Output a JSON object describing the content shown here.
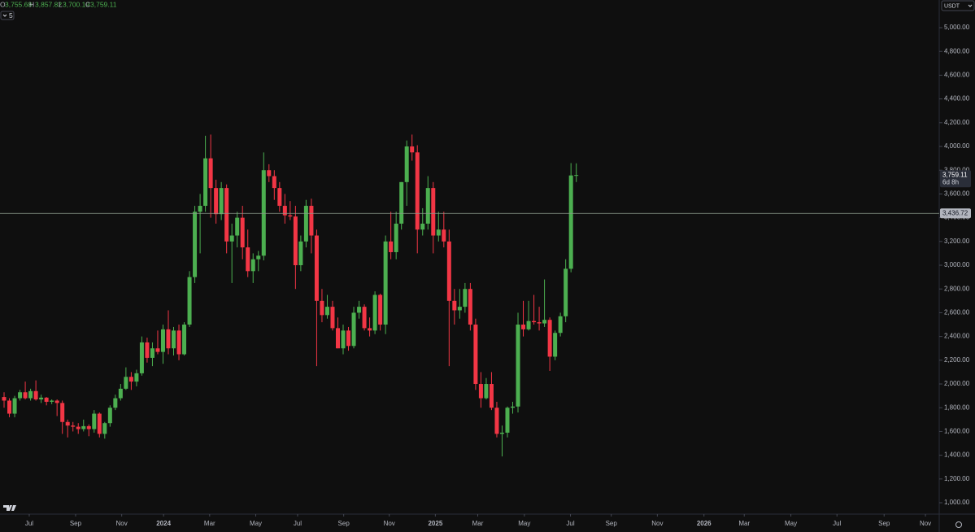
{
  "chart_data": {
    "type": "candlestick",
    "ohlc_legend": [
      {
        "key": "O",
        "value": 3755.68,
        "label": "3,755.68"
      },
      {
        "key": "H",
        "value": 3857.82,
        "label": "3,857.82"
      },
      {
        "key": "L",
        "value": 3700.19,
        "label": "3,700.19"
      },
      {
        "key": "C",
        "value": 3759.11,
        "label": "3,759.11"
      }
    ],
    "indicators_toggle": "5",
    "currency": "USDT",
    "up_color": "#4caf50",
    "down_color": "#f23645",
    "open": [
      1890,
      1860,
      1750,
      1880,
      1930,
      1880,
      1940,
      1870,
      1885,
      1850,
      1860,
      1840,
      1680,
      1650,
      1640,
      1620,
      1645,
      1620,
      1750,
      1580,
      1670,
      1800,
      1880,
      1960,
      2060,
      2020,
      2090,
      2350,
      2220,
      2300,
      2270,
      2460,
      2300,
      2450,
      2250,
      2500,
      2900,
      3450,
      3500,
      3900,
      3650,
      3430,
      3650,
      3200,
      3250,
      3400,
      3150,
      2950,
      3050,
      3080,
      3800,
      3750,
      3650,
      3500,
      3420,
      3410,
      3000,
      3200,
      3500,
      3250,
      2700,
      2580,
      2650,
      2470,
      2300,
      2450,
      2320,
      2600,
      2650,
      2470,
      2450,
      2750,
      2500,
      3200,
      3110,
      3350,
      3700,
      4000,
      3950,
      3300,
      3350,
      3650,
      3250,
      3300,
      3200,
      2700,
      2620,
      2650,
      2800,
      2500,
      2000,
      1880,
      2000,
      1800,
      1580,
      1590,
      1800,
      1810,
      2500,
      2460,
      2530,
      2520,
      2510,
      2540,
      2230,
      2430,
      2570,
      2970,
      3755.68
    ],
    "high": [
      1930,
      1880,
      1900,
      1950,
      2020,
      1960,
      2030,
      1910,
      1890,
      1870,
      1870,
      1860,
      1700,
      1680,
      1670,
      1700,
      1660,
      1780,
      1760,
      1680,
      1820,
      1910,
      2000,
      2140,
      2100,
      2120,
      2400,
      2390,
      2350,
      2450,
      2500,
      2620,
      2480,
      2500,
      2520,
      2950,
      3500,
      3600,
      4090,
      4100,
      3720,
      3700,
      3680,
      3350,
      3450,
      3500,
      3300,
      3100,
      3120,
      3950,
      3850,
      3800,
      3700,
      3600,
      3540,
      3500,
      3250,
      3550,
      3560,
      3300,
      2800,
      2750,
      2700,
      2560,
      2500,
      2480,
      2650,
      2700,
      2670,
      2560,
      2780,
      2760,
      3250,
      3450,
      3450,
      3700,
      4050,
      4100,
      4010,
      3480,
      3750,
      3700,
      3450,
      3450,
      3300,
      2800,
      2800,
      2850,
      2850,
      2550,
      2100,
      2050,
      2100,
      1850,
      1650,
      1810,
      1850,
      2600,
      2700,
      2700,
      2750,
      2650,
      2880,
      2560,
      2450,
      2600,
      3050,
      3860,
      3857.82
    ],
    "low": [
      1800,
      1720,
      1720,
      1860,
      1870,
      1860,
      1860,
      1840,
      1820,
      1830,
      1730,
      1580,
      1550,
      1600,
      1580,
      1600,
      1560,
      1590,
      1550,
      1540,
      1640,
      1780,
      1860,
      1950,
      1950,
      1980,
      2070,
      2180,
      2150,
      2250,
      2170,
      2250,
      2240,
      2200,
      2240,
      2480,
      2850,
      3100,
      3450,
      3400,
      3350,
      3380,
      3100,
      2850,
      3150,
      3050,
      2900,
      2850,
      2950,
      3040,
      3700,
      3550,
      3450,
      3350,
      3380,
      2800,
      2950,
      3150,
      3100,
      2150,
      2520,
      2550,
      2450,
      2300,
      2250,
      2280,
      2300,
      2550,
      2450,
      2400,
      2420,
      2450,
      2420,
      3050,
      3050,
      3300,
      3500,
      3880,
      3100,
      3250,
      3300,
      3100,
      3200,
      3150,
      2150,
      2500,
      2550,
      2600,
      2450,
      1950,
      1800,
      1870,
      1780,
      1550,
      1390,
      1550,
      1750,
      1760,
      2400,
      2450,
      2500,
      2450,
      2480,
      2110,
      2200,
      2400,
      2520,
      2940,
      3700.19
    ],
    "close": [
      1860,
      1750,
      1880,
      1930,
      1880,
      1940,
      1870,
      1885,
      1850,
      1860,
      1840,
      1680,
      1650,
      1640,
      1620,
      1645,
      1620,
      1750,
      1580,
      1670,
      1800,
      1880,
      1960,
      2060,
      2020,
      2090,
      2350,
      2220,
      2300,
      2270,
      2460,
      2300,
      2450,
      2250,
      2500,
      2900,
      3450,
      3500,
      3900,
      3650,
      3430,
      3650,
      3200,
      3250,
      3400,
      3150,
      2950,
      3050,
      3080,
      3800,
      3750,
      3650,
      3500,
      3420,
      3410,
      3000,
      3200,
      3500,
      3250,
      2700,
      2580,
      2650,
      2470,
      2300,
      2450,
      2320,
      2600,
      2650,
      2470,
      2450,
      2750,
      2500,
      3200,
      3110,
      3350,
      3700,
      4000,
      3950,
      3300,
      3350,
      3650,
      3250,
      3300,
      3200,
      2700,
      2620,
      2650,
      2800,
      2500,
      2000,
      1880,
      2000,
      1800,
      1580,
      1590,
      1800,
      1810,
      2500,
      2460,
      2530,
      2520,
      2510,
      2540,
      2230,
      2430,
      2570,
      2970,
      3755.68,
      3759.11
    ],
    "xlim": [
      -0.77,
      176.5
    ],
    "xticks": [
      {
        "value": 4.75,
        "label": "Jul"
      },
      {
        "value": 13.5,
        "label": "Sep"
      },
      {
        "value": 22.2,
        "label": "Nov"
      },
      {
        "value": 30.1,
        "label": "2024"
      },
      {
        "value": 38.8,
        "label": "Mar"
      },
      {
        "value": 47.5,
        "label": "May"
      },
      {
        "value": 55.4,
        "label": "Jul"
      },
      {
        "value": 64.1,
        "label": "Sep"
      },
      {
        "value": 72.7,
        "label": "Nov"
      },
      {
        "value": 81.4,
        "label": "2025"
      },
      {
        "value": 89.4,
        "label": "Mar"
      },
      {
        "value": 98.2,
        "label": "May"
      },
      {
        "value": 106.9,
        "label": "Jul"
      },
      {
        "value": 114.6,
        "label": "Sep"
      },
      {
        "value": 123.3,
        "label": "Nov"
      },
      {
        "value": 132.1,
        "label": "2026"
      },
      {
        "value": 139.7,
        "label": "Mar"
      },
      {
        "value": 148.5,
        "label": "May"
      },
      {
        "value": 157.2,
        "label": "Jul"
      },
      {
        "value": 166.1,
        "label": "Sep"
      },
      {
        "value": 173.9,
        "label": "Nov"
      }
    ],
    "ylim": [
      918,
      5233
    ],
    "yticks": [
      {
        "value": 1000,
        "label": "1,000.00"
      },
      {
        "value": 1200,
        "label": "1,200.00"
      },
      {
        "value": 1400,
        "label": "1,400.00"
      },
      {
        "value": 1600,
        "label": "1,600.00"
      },
      {
        "value": 1800,
        "label": "1,800.00"
      },
      {
        "value": 2000,
        "label": "2,000.00"
      },
      {
        "value": 2200,
        "label": "2,200.00"
      },
      {
        "value": 2400,
        "label": "2,400.00"
      },
      {
        "value": 2600,
        "label": "2,600.00"
      },
      {
        "value": 2800,
        "label": "2,800.00"
      },
      {
        "value": 3000,
        "label": "3,000.00"
      },
      {
        "value": 3200,
        "label": "3,200.00"
      },
      {
        "value": 3400,
        "label": "3,400.00"
      },
      {
        "value": 3600,
        "label": "3,600.00"
      },
      {
        "value": 3800,
        "label": "3,800.00"
      },
      {
        "value": 4000,
        "label": "4,000.00"
      },
      {
        "value": 4200,
        "label": "4,200.00"
      },
      {
        "value": 4400,
        "label": "4,400.00"
      },
      {
        "value": 4600,
        "label": "4,600.00"
      },
      {
        "value": 4800,
        "label": "4,800.00"
      },
      {
        "value": 5000,
        "label": "5,000.00"
      }
    ],
    "price_line": {
      "value": 3436.72,
      "label": "3,436.72"
    },
    "last_price": {
      "value": 3759.11,
      "label": "3,759.11",
      "countdown": "6d 8h"
    }
  }
}
